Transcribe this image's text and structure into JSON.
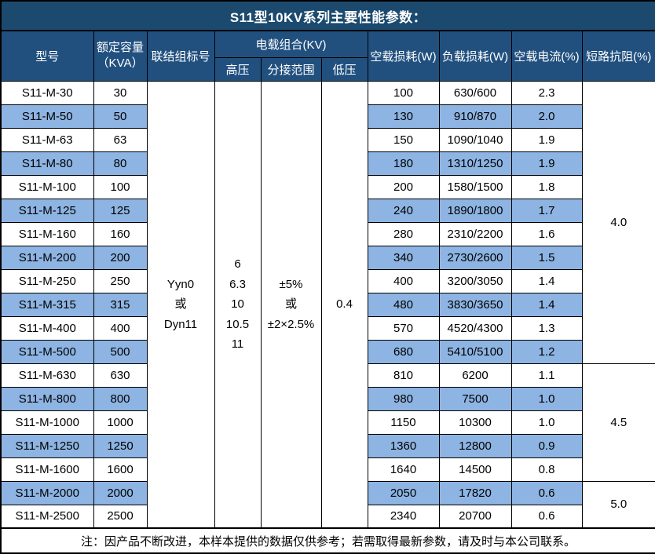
{
  "title": "S11型10KV系列主要性能参数：",
  "colors": {
    "title_bg": "#1C4A6E",
    "header_bg": "#21507F",
    "row_alt": "#8DB4E2",
    "border": "#000000",
    "text_light": "#FFFFFF",
    "text_dark": "#000000"
  },
  "headers": {
    "model": "型号",
    "capacity": "额定容量\n（KVA）",
    "connection": "联结组标号",
    "load_combo": "电载组合(KV)",
    "high_voltage": "高压",
    "tap_range": "分接范围",
    "low_voltage": "低压",
    "no_load_loss": "空载损耗(W)",
    "load_loss": "负载损耗(W)",
    "no_load_current": "空载电流(%)",
    "impedance": "短路抗阻(%)"
  },
  "merged": {
    "connection_group": "Yyn0\n或\nDyn11",
    "high_voltage": "6\n6.3\n10\n10.5\n11",
    "tap_range": "±5%\n或\n±2×2.5%",
    "low_voltage": "0.4"
  },
  "impedance_groups": [
    {
      "value": "4.0",
      "row_span": 12
    },
    {
      "value": "4.5",
      "row_span": 5
    },
    {
      "value": "5.0",
      "row_span": 2
    }
  ],
  "rows": [
    {
      "model": "S11-M-30",
      "capacity": "30",
      "no_load_loss": "100",
      "load_loss": "630/600",
      "no_load_current": "2.3"
    },
    {
      "model": "S11-M-50",
      "capacity": "50",
      "no_load_loss": "130",
      "load_loss": "910/870",
      "no_load_current": "2.0"
    },
    {
      "model": "S11-M-63",
      "capacity": "63",
      "no_load_loss": "150",
      "load_loss": "1090/1040",
      "no_load_current": "1.9"
    },
    {
      "model": "S11-M-80",
      "capacity": "80",
      "no_load_loss": "180",
      "load_loss": "1310/1250",
      "no_load_current": "1.9"
    },
    {
      "model": "S11-M-100",
      "capacity": "100",
      "no_load_loss": "200",
      "load_loss": "1580/1500",
      "no_load_current": "1.8"
    },
    {
      "model": "S11-M-125",
      "capacity": "125",
      "no_load_loss": "240",
      "load_loss": "1890/1800",
      "no_load_current": "1.7"
    },
    {
      "model": "S11-M-160",
      "capacity": "160",
      "no_load_loss": "280",
      "load_loss": "2310/2200",
      "no_load_current": "1.6"
    },
    {
      "model": "S11-M-200",
      "capacity": "200",
      "no_load_loss": "340",
      "load_loss": "2730/2600",
      "no_load_current": "1.5"
    },
    {
      "model": "S11-M-250",
      "capacity": "250",
      "no_load_loss": "400",
      "load_loss": "3200/3050",
      "no_load_current": "1.4"
    },
    {
      "model": "S11-M-315",
      "capacity": "315",
      "no_load_loss": "480",
      "load_loss": "3830/3650",
      "no_load_current": "1.4"
    },
    {
      "model": "S11-M-400",
      "capacity": "400",
      "no_load_loss": "570",
      "load_loss": "4520/4300",
      "no_load_current": "1.3"
    },
    {
      "model": "S11-M-500",
      "capacity": "500",
      "no_load_loss": "680",
      "load_loss": "5410/5100",
      "no_load_current": "1.2"
    },
    {
      "model": "S11-M-630",
      "capacity": "630",
      "no_load_loss": "810",
      "load_loss": "6200",
      "no_load_current": "1.1"
    },
    {
      "model": "S11-M-800",
      "capacity": "800",
      "no_load_loss": "980",
      "load_loss": "7500",
      "no_load_current": "1.0"
    },
    {
      "model": "S11-M-1000",
      "capacity": "1000",
      "no_load_loss": "1150",
      "load_loss": "10300",
      "no_load_current": "1.0"
    },
    {
      "model": "S11-M-1250",
      "capacity": "1250",
      "no_load_loss": "1360",
      "load_loss": "12800",
      "no_load_current": "0.9"
    },
    {
      "model": "S11-M-1600",
      "capacity": "1600",
      "no_load_loss": "1640",
      "load_loss": "14500",
      "no_load_current": "0.8"
    },
    {
      "model": "S11-M-2000",
      "capacity": "2000",
      "no_load_loss": "2050",
      "load_loss": "17820",
      "no_load_current": "0.6"
    },
    {
      "model": "S11-M-2500",
      "capacity": "2500",
      "no_load_loss": "2340",
      "load_loss": "20700",
      "no_load_current": "0.6"
    }
  ],
  "footer_note": "注：因产品不断改进，本样本提供的数据仅供参考；若需取得最新参数，请及时与本公司联系。"
}
